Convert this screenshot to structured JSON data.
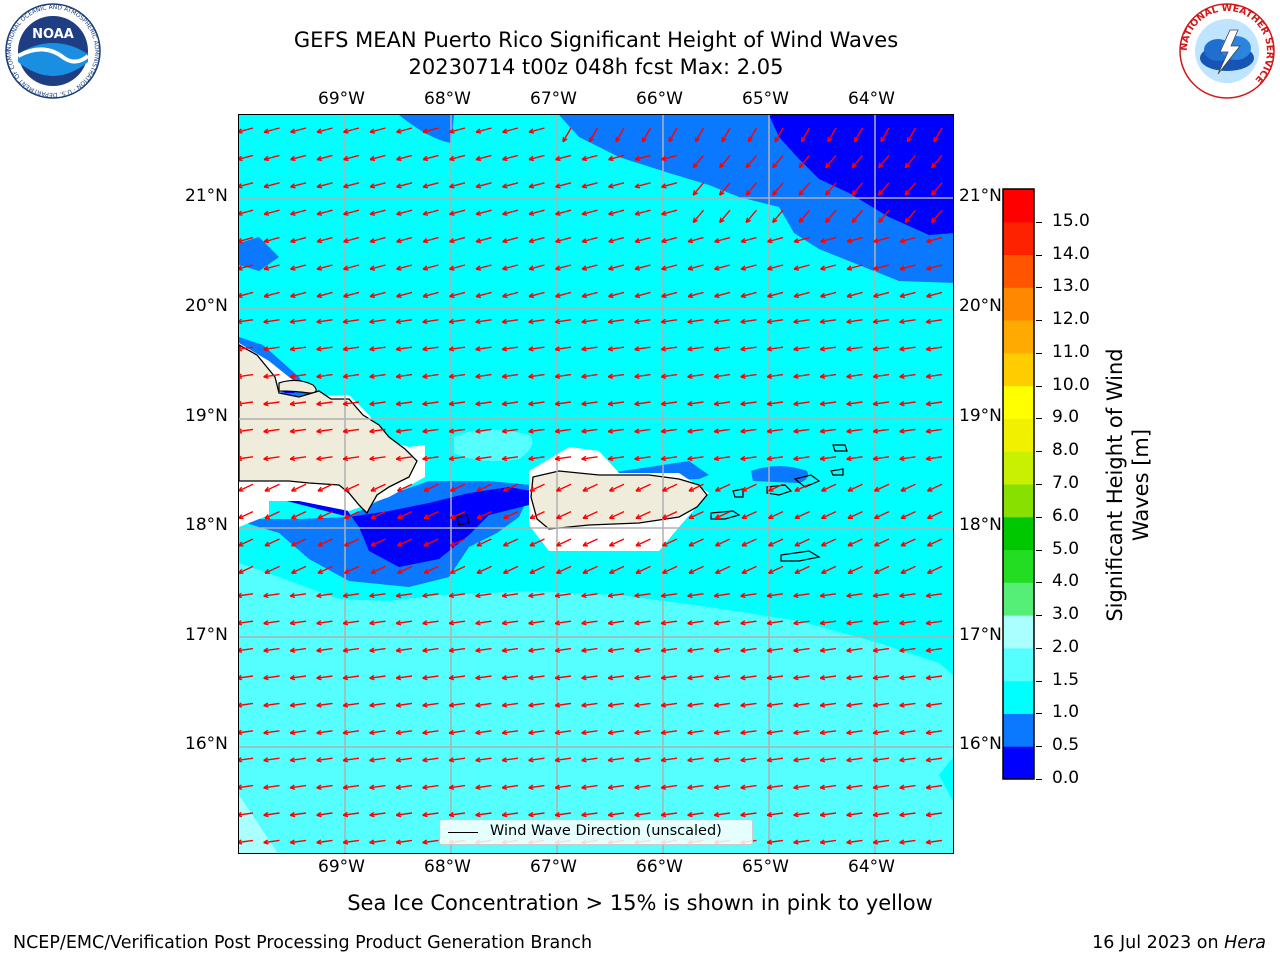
{
  "header": {
    "title_line1": "GEFS MEAN Puerto Rico Significant Height of Wind Waves",
    "title_line2": "20230714 t00z 048h fcst   Max: 2.05"
  },
  "logos": {
    "noaa_text": "NOAA",
    "noaa_ring": "NATIONAL OCEANIC AND ATMOSPHERIC ADMINISTRATION · U.S. DEPARTMENT OF COMMERCE ·",
    "nws_ring": "NATIONAL WEATHER SERVICE"
  },
  "map": {
    "lon_labels": [
      "69°W",
      "68°W",
      "67°W",
      "66°W",
      "65°W",
      "64°W"
    ],
    "lat_labels_left": [
      "21°N",
      "20°N",
      "19°N",
      "18°N",
      "17°N",
      "16°N"
    ],
    "lat_labels_right": [
      "21°N",
      "20°N",
      "19°N",
      "18°N",
      "17°N",
      "16°N"
    ],
    "land_color": "#efecdc",
    "arrow_color": "#ff0000",
    "legend_label": "Wind Wave Direction (unscaled)"
  },
  "colorbar": {
    "title": "Significant Height of Wind Waves [m]",
    "tick_labels": [
      "0.0",
      "0.5",
      "1.0",
      "1.5",
      "2.0",
      "3.0",
      "4.0",
      "5.0",
      "6.0",
      "7.0",
      "8.0",
      "9.0",
      "10.0",
      "11.0",
      "12.0",
      "13.0",
      "14.0",
      "15.0"
    ],
    "colors": [
      "#0000ff",
      "#0a78ff",
      "#00ffff",
      "#55ffff",
      "#aaffff",
      "#55ee77",
      "#22dd22",
      "#00c800",
      "#88e000",
      "#c8f000",
      "#f0f000",
      "#ffff00",
      "#ffcc00",
      "#ffaa00",
      "#ff8800",
      "#ff5500",
      "#ff2200",
      "#ff0000"
    ]
  },
  "caption": "Sea Ice Concentration > 15% is shown in pink to yellow",
  "footer": {
    "left": "NCEP/EMC/Verification Post Processing Product Generation Branch",
    "right_prefix": "16 Jul 2023 on ",
    "right_host": "Hera"
  }
}
